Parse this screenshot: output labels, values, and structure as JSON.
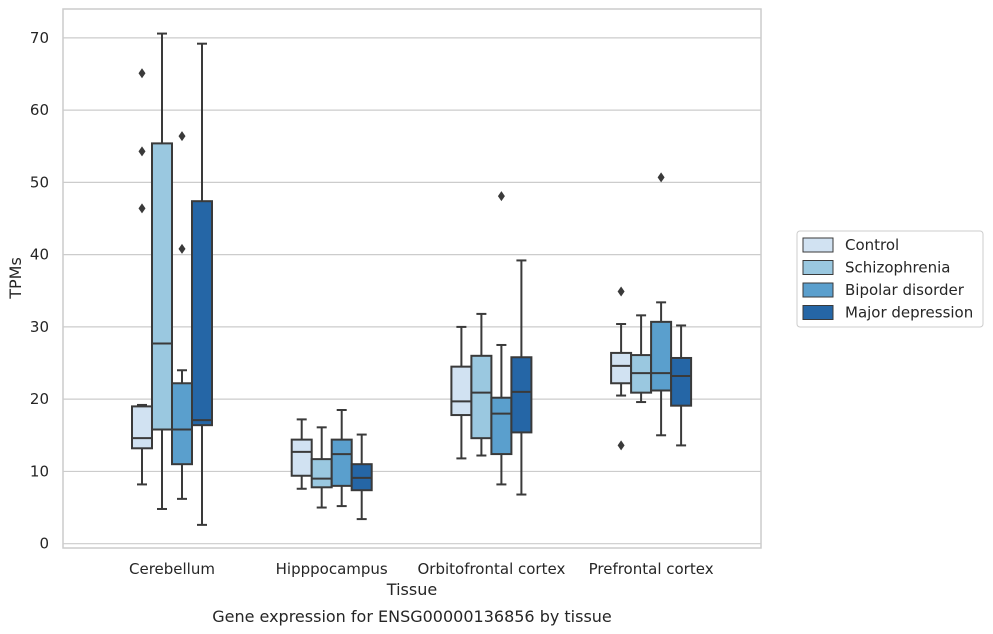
{
  "chart_data": {
    "type": "box",
    "xlabel": "Tissue",
    "ylabel": "TPMs",
    "caption": "Gene expression for ENSG00000136856 by tissue",
    "ylim": [
      -0.6,
      74
    ],
    "yticks": [
      0,
      10,
      20,
      30,
      40,
      50,
      60,
      70
    ],
    "grid": "horizontal",
    "legend_position": "right",
    "categories": [
      "Cerebellum",
      "Hipppocampus",
      "Orbitofrontal cortex",
      "Prefrontal cortex"
    ],
    "series": [
      {
        "name": "Control",
        "color": "#d1e2f2",
        "boxes": [
          {
            "whislo": 8.2,
            "q1": 13.2,
            "med": 14.6,
            "q3": 19.0,
            "whishi": 19.2,
            "fliers": [
              46.4,
              54.3,
              65.1
            ]
          },
          {
            "whislo": 7.6,
            "q1": 9.4,
            "med": 12.7,
            "q3": 14.4,
            "whishi": 17.2,
            "fliers": []
          },
          {
            "whislo": 11.8,
            "q1": 17.8,
            "med": 19.7,
            "q3": 24.5,
            "whishi": 30.0,
            "fliers": []
          },
          {
            "whislo": 20.5,
            "q1": 22.2,
            "med": 24.6,
            "q3": 26.4,
            "whishi": 30.4,
            "fliers": [
              13.6,
              34.9
            ]
          }
        ]
      },
      {
        "name": "Schizophrenia",
        "color": "#9ac8e0",
        "boxes": [
          {
            "whislo": 4.8,
            "q1": 15.8,
            "med": 27.7,
            "q3": 55.4,
            "whishi": 70.6,
            "fliers": []
          },
          {
            "whislo": 5.0,
            "q1": 7.8,
            "med": 9.0,
            "q3": 11.7,
            "whishi": 16.1,
            "fliers": []
          },
          {
            "whislo": 12.2,
            "q1": 14.6,
            "med": 20.9,
            "q3": 26.0,
            "whishi": 31.8,
            "fliers": []
          },
          {
            "whislo": 19.6,
            "q1": 20.9,
            "med": 23.6,
            "q3": 26.1,
            "whishi": 31.6,
            "fliers": []
          }
        ]
      },
      {
        "name": "Bipolar disorder",
        "color": "#5a9fcd",
        "boxes": [
          {
            "whislo": 6.2,
            "q1": 11.0,
            "med": 15.8,
            "q3": 22.2,
            "whishi": 24.0,
            "fliers": [
              40.8,
              56.4
            ]
          },
          {
            "whislo": 5.2,
            "q1": 8.0,
            "med": 12.4,
            "q3": 14.4,
            "whishi": 18.5,
            "fliers": []
          },
          {
            "whislo": 8.2,
            "q1": 12.4,
            "med": 18.0,
            "q3": 20.2,
            "whishi": 27.5,
            "fliers": [
              48.1
            ]
          },
          {
            "whislo": 15.0,
            "q1": 21.2,
            "med": 23.6,
            "q3": 30.7,
            "whishi": 33.4,
            "fliers": [
              50.7
            ]
          }
        ]
      },
      {
        "name": "Major depression",
        "color": "#2566a6",
        "boxes": [
          {
            "whislo": 2.6,
            "q1": 16.4,
            "med": 17.1,
            "q3": 47.4,
            "whishi": 69.2,
            "fliers": []
          },
          {
            "whislo": 3.4,
            "q1": 7.4,
            "med": 9.1,
            "q3": 11.0,
            "whishi": 15.1,
            "fliers": []
          },
          {
            "whislo": 6.8,
            "q1": 15.4,
            "med": 21.0,
            "q3": 25.8,
            "whishi": 39.2,
            "fliers": []
          },
          {
            "whislo": 13.6,
            "q1": 19.1,
            "med": 23.2,
            "q3": 25.7,
            "whishi": 30.2,
            "fliers": []
          }
        ]
      }
    ]
  },
  "colors": {
    "grid": "#cccccc",
    "frame": "#cccccc",
    "box_edge": "#3a3a3a"
  }
}
